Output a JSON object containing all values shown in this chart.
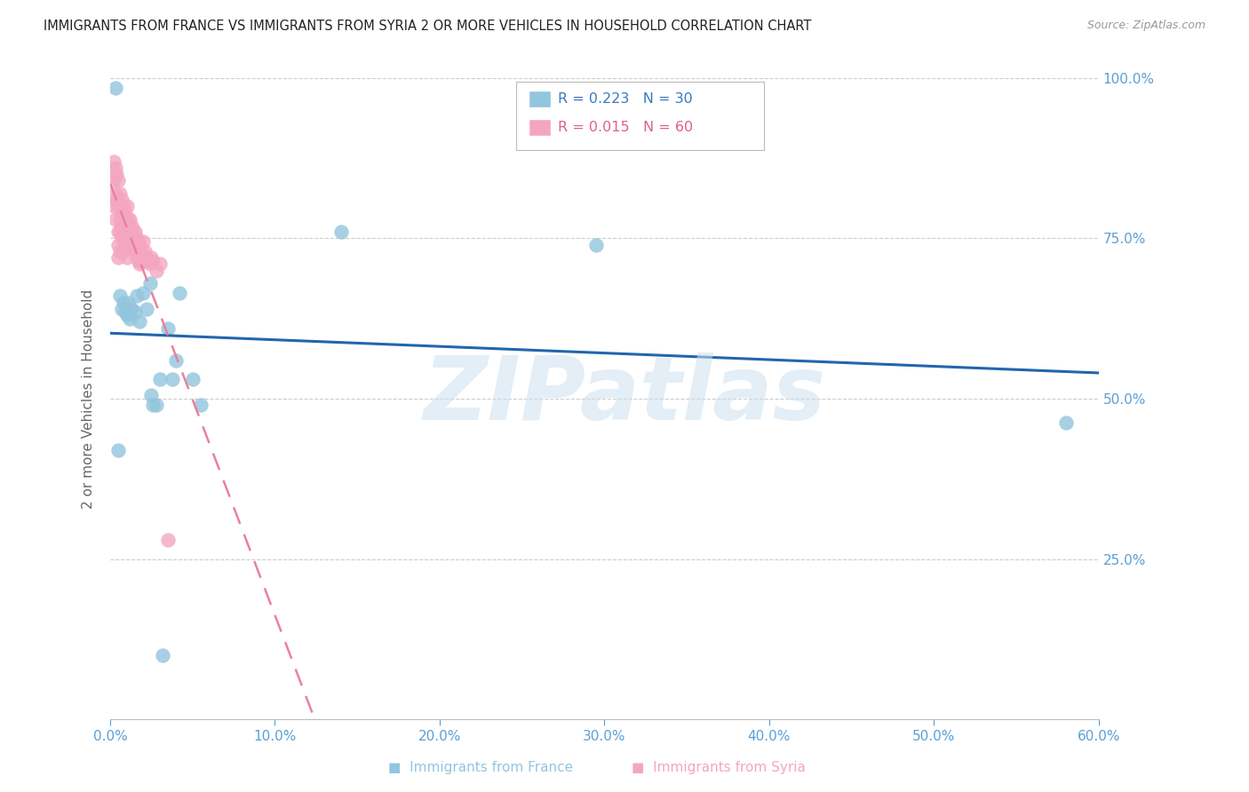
{
  "title": "IMMIGRANTS FROM FRANCE VS IMMIGRANTS FROM SYRIA 2 OR MORE VEHICLES IN HOUSEHOLD CORRELATION CHART",
  "source": "Source: ZipAtlas.com",
  "ylabel": "2 or more Vehicles in Household",
  "xlim": [
    0.0,
    0.6
  ],
  "ylim": [
    0.0,
    1.0
  ],
  "xtick_labels": [
    "0.0%",
    "10.0%",
    "20.0%",
    "30.0%",
    "40.0%",
    "50.0%",
    "60.0%"
  ],
  "xtick_values": [
    0.0,
    0.1,
    0.2,
    0.3,
    0.4,
    0.5,
    0.6
  ],
  "ytick_labels": [
    "25.0%",
    "50.0%",
    "75.0%",
    "100.0%"
  ],
  "ytick_values": [
    0.25,
    0.5,
    0.75,
    1.0
  ],
  "france_R": 0.223,
  "france_N": 30,
  "syria_R": 0.015,
  "syria_N": 60,
  "france_color": "#92c5de",
  "syria_color": "#f4a6c0",
  "france_line_color": "#2166ac",
  "syria_line_color": "#e8829a",
  "watermark_text": "ZIPatlas",
  "france_x": [
    0.003,
    0.005,
    0.006,
    0.007,
    0.008,
    0.009,
    0.01,
    0.011,
    0.012,
    0.013,
    0.015,
    0.016,
    0.018,
    0.02,
    0.022,
    0.024,
    0.025,
    0.026,
    0.028,
    0.03,
    0.032,
    0.035,
    0.038,
    0.04,
    0.042,
    0.05,
    0.055,
    0.14,
    0.295,
    0.58
  ],
  "france_y": [
    0.985,
    0.42,
    0.66,
    0.64,
    0.65,
    0.635,
    0.63,
    0.65,
    0.625,
    0.64,
    0.635,
    0.66,
    0.62,
    0.665,
    0.64,
    0.68,
    0.505,
    0.49,
    0.49,
    0.53,
    0.1,
    0.61,
    0.53,
    0.56,
    0.665,
    0.53,
    0.49,
    0.76,
    0.74,
    0.462
  ],
  "syria_x": [
    0.002,
    0.002,
    0.002,
    0.003,
    0.003,
    0.003,
    0.004,
    0.004,
    0.005,
    0.005,
    0.005,
    0.005,
    0.005,
    0.006,
    0.006,
    0.006,
    0.006,
    0.007,
    0.007,
    0.007,
    0.007,
    0.008,
    0.008,
    0.008,
    0.008,
    0.009,
    0.009,
    0.01,
    0.01,
    0.01,
    0.01,
    0.01,
    0.011,
    0.011,
    0.012,
    0.012,
    0.013,
    0.013,
    0.014,
    0.014,
    0.015,
    0.015,
    0.016,
    0.016,
    0.017,
    0.017,
    0.018,
    0.018,
    0.019,
    0.02,
    0.02,
    0.021,
    0.022,
    0.023,
    0.024,
    0.025,
    0.026,
    0.028,
    0.03,
    0.035
  ],
  "syria_y": [
    0.84,
    0.87,
    0.8,
    0.86,
    0.82,
    0.78,
    0.85,
    0.81,
    0.84,
    0.8,
    0.76,
    0.74,
    0.72,
    0.82,
    0.78,
    0.76,
    0.73,
    0.81,
    0.79,
    0.77,
    0.75,
    0.8,
    0.77,
    0.75,
    0.73,
    0.79,
    0.76,
    0.8,
    0.775,
    0.76,
    0.74,
    0.72,
    0.78,
    0.75,
    0.78,
    0.755,
    0.77,
    0.745,
    0.76,
    0.735,
    0.76,
    0.73,
    0.75,
    0.72,
    0.745,
    0.715,
    0.74,
    0.71,
    0.73,
    0.745,
    0.715,
    0.73,
    0.72,
    0.715,
    0.71,
    0.72,
    0.715,
    0.7,
    0.71,
    0.28
  ]
}
